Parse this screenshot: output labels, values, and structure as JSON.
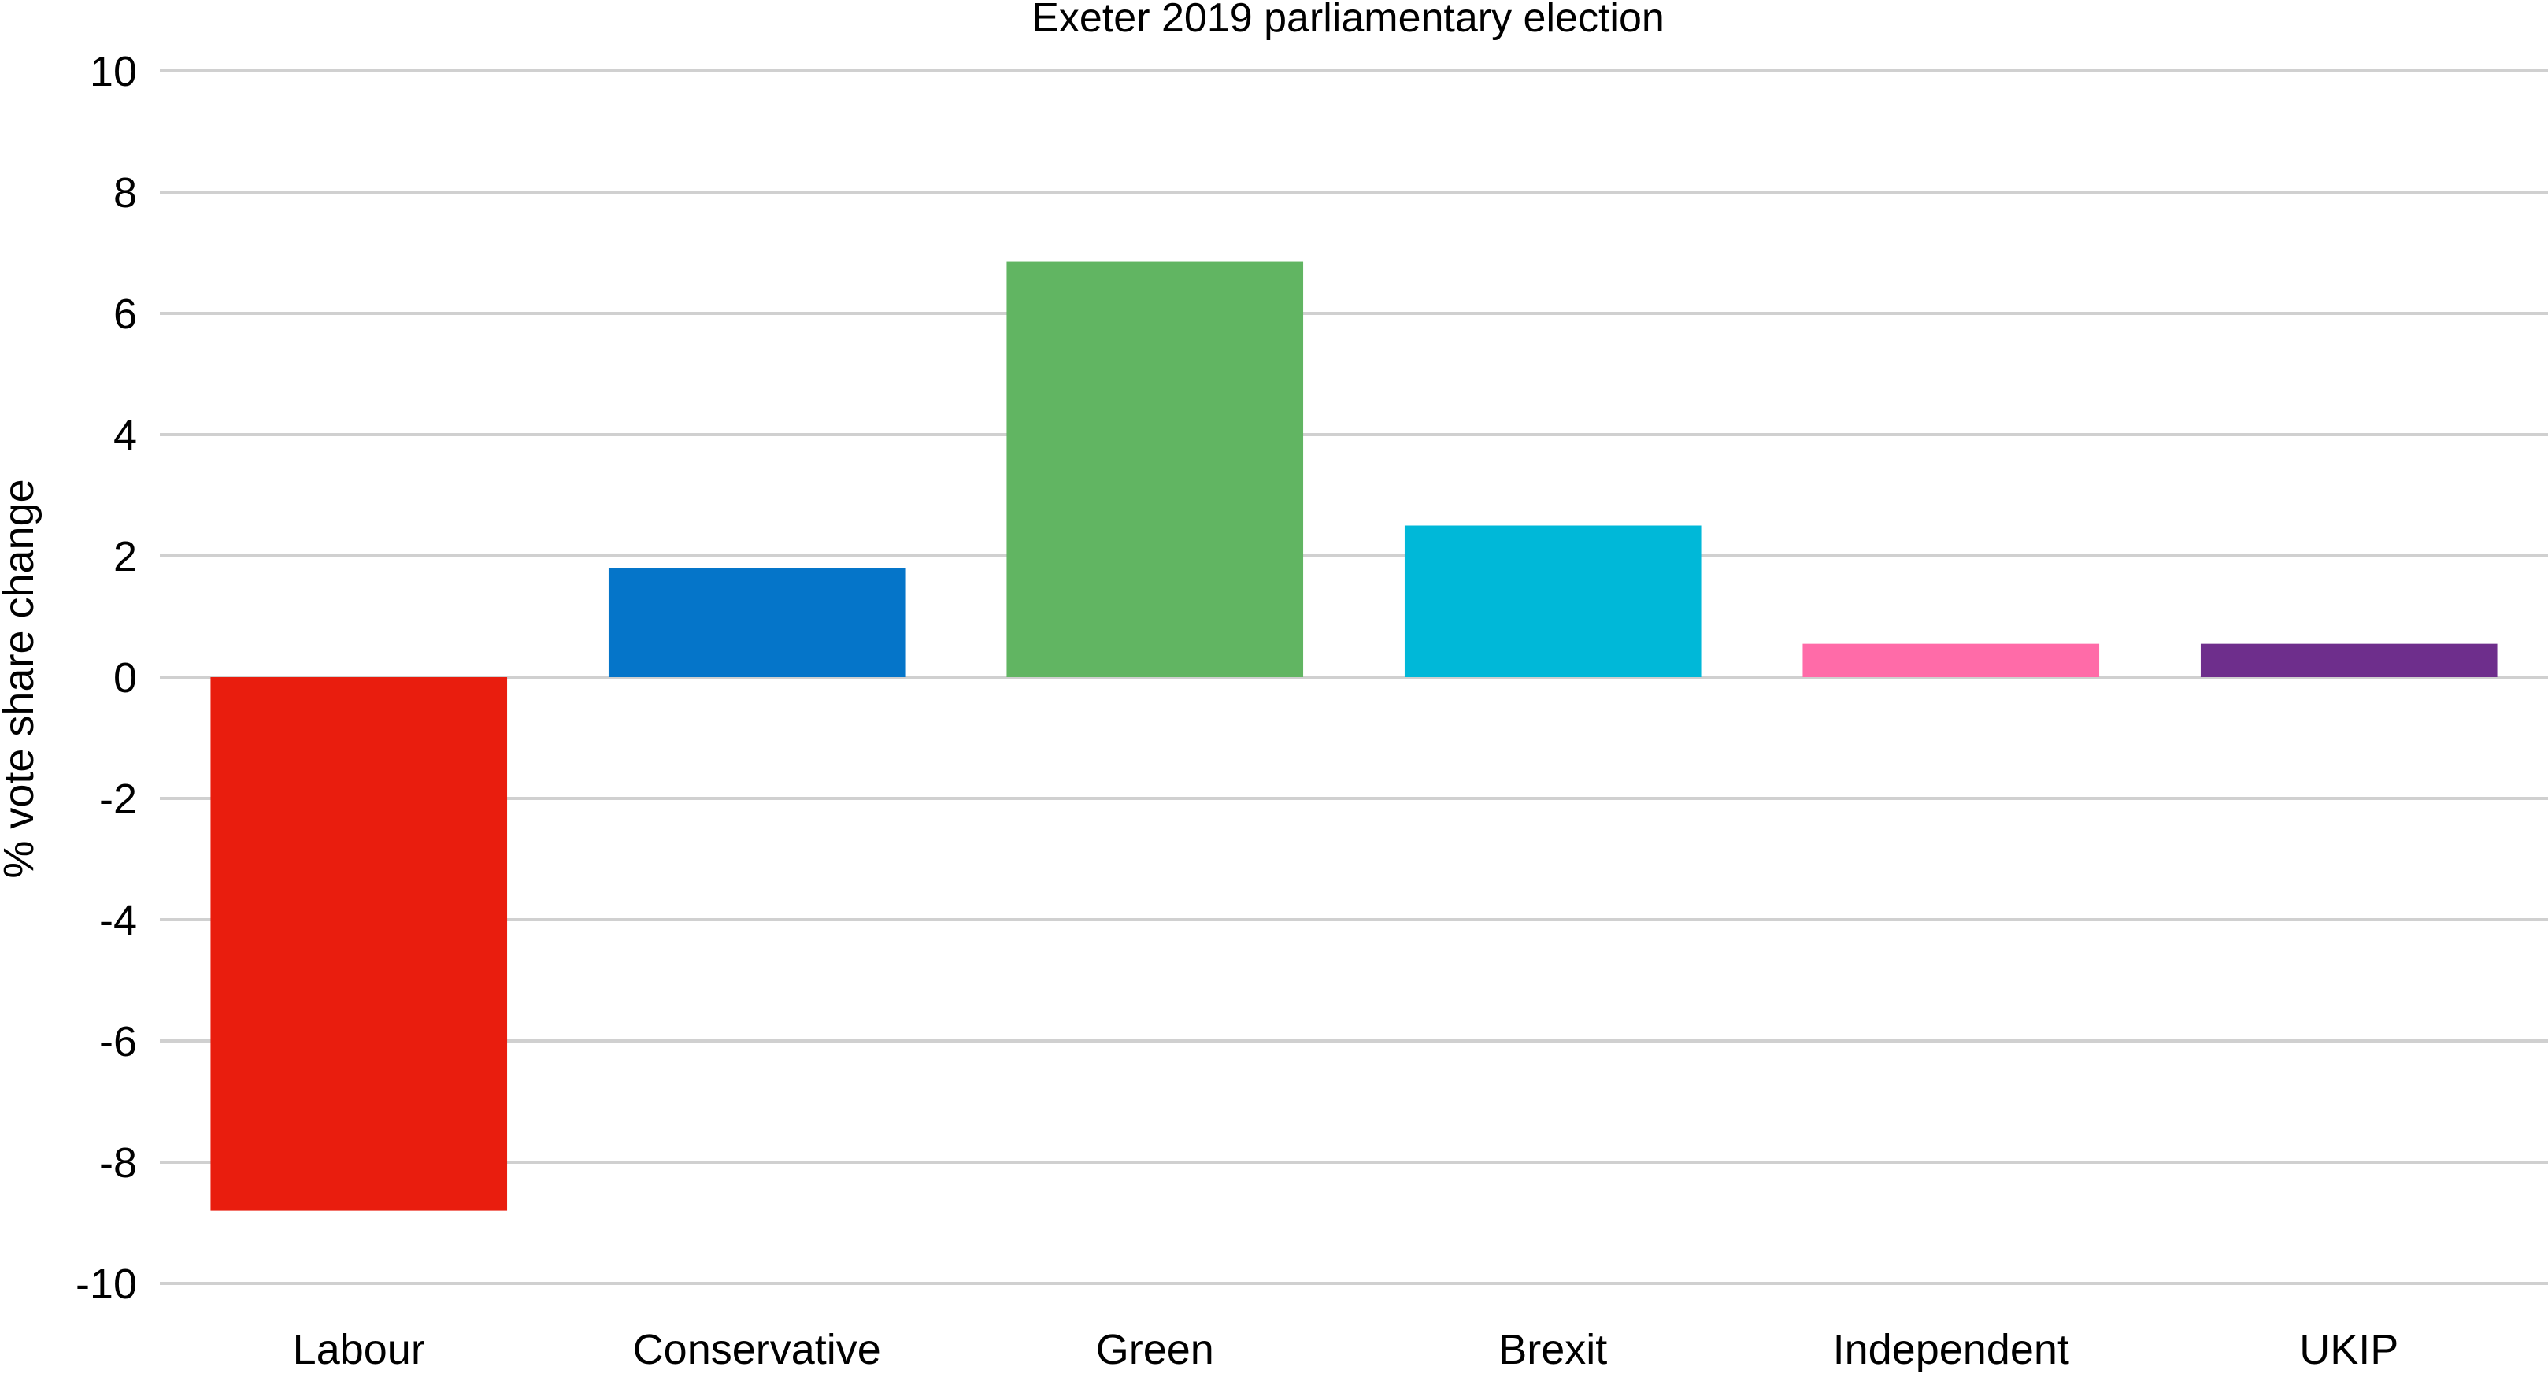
{
  "chart_data": {
    "type": "bar",
    "title": "Exeter 2019 parliamentary election",
    "xlabel": "",
    "ylabel": "% vote share change",
    "ylim": [
      -10,
      10
    ],
    "yticks": [
      10,
      8,
      6,
      4,
      2,
      0,
      -2,
      -4,
      -6,
      -8,
      -10
    ],
    "grid": true,
    "legend": "none",
    "categories": [
      "Labour",
      "Conservative",
      "Green",
      "Brexit",
      "Independent",
      "UKIP"
    ],
    "values": [
      -8.8,
      1.8,
      6.85,
      2.5,
      0.55,
      0.55
    ],
    "colors": [
      "#E91D0E",
      "#0575C9",
      "#61B562",
      "#00B8D8",
      "#FF6BA8",
      "#6E2E8C"
    ]
  }
}
